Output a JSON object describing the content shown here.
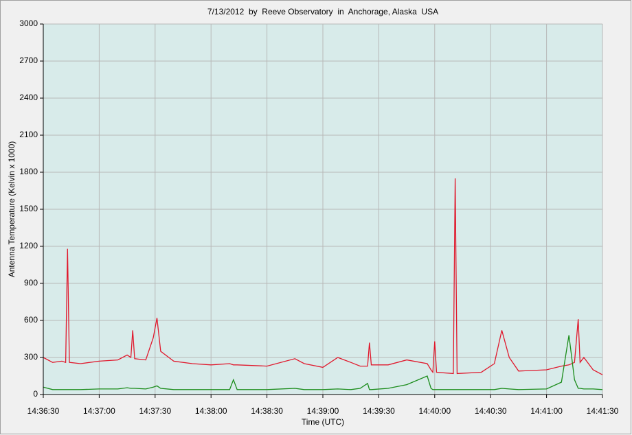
{
  "chart_data": {
    "type": "line",
    "title": "7/13/2012  by  Reeve Observatory  in  Anchorage, Alaska  USA",
    "x_label": "Time (UTC)",
    "y_label": "Antenna Temperature (Kelvin x 1000)",
    "x": [
      "14:36:30",
      "14:36:35",
      "14:36:40",
      "14:36:42",
      "14:36:43",
      "14:36:44",
      "14:36:50",
      "14:37:00",
      "14:37:10",
      "14:37:15",
      "14:37:17",
      "14:37:18",
      "14:37:19",
      "14:37:25",
      "14:37:29",
      "14:37:31",
      "14:37:33",
      "14:37:40",
      "14:37:50",
      "14:38:00",
      "14:38:10",
      "14:38:12",
      "14:38:14",
      "14:38:30",
      "14:38:45",
      "14:38:50",
      "14:39:00",
      "14:39:08",
      "14:39:15",
      "14:39:20",
      "14:39:24",
      "14:39:25",
      "14:39:26",
      "14:39:35",
      "14:39:45",
      "14:39:56",
      "14:39:58",
      "14:39:59",
      "14:40:00",
      "14:40:01",
      "14:40:10",
      "14:40:11",
      "14:40:12",
      "14:40:25",
      "14:40:32",
      "14:40:36",
      "14:40:40",
      "14:40:45",
      "14:41:00",
      "14:41:08",
      "14:41:12",
      "14:41:15",
      "14:41:17",
      "14:41:18",
      "14:41:20",
      "14:41:25",
      "14:41:30"
    ],
    "series": [
      {
        "color": "#e0182c",
        "values": [
          300,
          260,
          270,
          260,
          1180,
          260,
          250,
          270,
          280,
          320,
          300,
          520,
          290,
          280,
          460,
          620,
          350,
          270,
          250,
          240,
          250,
          240,
          240,
          230,
          290,
          250,
          220,
          300,
          260,
          230,
          230,
          420,
          240,
          240,
          280,
          250,
          200,
          180,
          430,
          180,
          170,
          1750,
          170,
          180,
          250,
          520,
          300,
          190,
          200,
          230,
          240,
          260,
          610,
          260,
          300,
          200,
          160
        ]
      },
      {
        "color": "#1a8c1a",
        "values": [
          60,
          40,
          40,
          40,
          40,
          40,
          40,
          45,
          45,
          55,
          50,
          50,
          50,
          45,
          60,
          70,
          50,
          40,
          40,
          40,
          40,
          120,
          40,
          40,
          50,
          40,
          40,
          45,
          40,
          50,
          90,
          40,
          40,
          50,
          80,
          150,
          50,
          40,
          40,
          40,
          40,
          40,
          40,
          40,
          40,
          50,
          45,
          40,
          45,
          100,
          480,
          120,
          50,
          50,
          45,
          45,
          40
        ]
      }
    ],
    "xlim": [
      "14:36:30",
      "14:41:30"
    ],
    "xticks": [
      "14:36:30",
      "14:37:00",
      "14:37:30",
      "14:38:00",
      "14:38:30",
      "14:39:00",
      "14:39:30",
      "14:40:00",
      "14:40:30",
      "14:41:00",
      "14:41:30"
    ],
    "ylim": [
      0,
      3000
    ],
    "yticks": [
      0,
      300,
      600,
      900,
      1200,
      1500,
      1800,
      2100,
      2400,
      2700,
      3000
    ],
    "grid": true
  }
}
